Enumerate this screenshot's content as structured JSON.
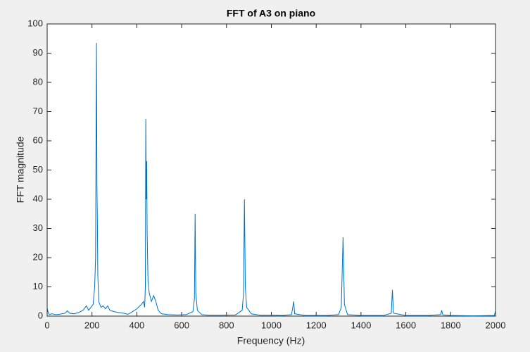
{
  "chart_data": {
    "type": "line",
    "title": "FFT of A3 on piano",
    "x_label": "Frequency (Hz)",
    "y_label": "FFT magnitude",
    "x": [
      0,
      5,
      10,
      20,
      40,
      60,
      80,
      90,
      100,
      120,
      140,
      160,
      175,
      185,
      195,
      205,
      212,
      216,
      218,
      220,
      222,
      224,
      226,
      230,
      240,
      250,
      260,
      270,
      280,
      300,
      320,
      340,
      360,
      380,
      400,
      420,
      430,
      435,
      438,
      440,
      442,
      444,
      446,
      448,
      450,
      455,
      465,
      475,
      485,
      495,
      510,
      540,
      580,
      620,
      650,
      657,
      660,
      663,
      670,
      690,
      720,
      780,
      840,
      870,
      876,
      880,
      884,
      890,
      910,
      950,
      1000,
      1050,
      1090,
      1100,
      1104,
      1150,
      1250,
      1300,
      1312,
      1320,
      1326,
      1340,
      1400,
      1500,
      1535,
      1540,
      1545,
      1600,
      1700,
      1755,
      1760,
      1765,
      1800,
      1900,
      1995,
      2000
    ],
    "values": [
      3,
      1,
      0.5,
      0.8,
      0.5,
      0.7,
      1,
      1.8,
      1,
      0.8,
      1.2,
      2,
      3.5,
      2,
      3,
      4,
      10,
      20,
      60,
      93.5,
      45,
      33,
      14,
      5,
      3,
      3.5,
      2.5,
      3.5,
      2,
      1.5,
      1.2,
      1,
      0.6,
      1.5,
      2.5,
      4,
      5,
      3,
      10,
      67.5,
      40,
      53,
      29,
      20,
      12,
      8,
      5,
      7,
      5,
      2,
      0.8,
      0.5,
      0.4,
      0.5,
      1.5,
      6,
      35,
      8,
      2,
      0.5,
      0.3,
      0.3,
      0.4,
      2,
      8,
      40,
      10,
      3,
      0.8,
      0.3,
      0.3,
      0.2,
      0.5,
      5,
      0.8,
      0.2,
      0.2,
      0.5,
      3,
      27,
      4,
      0.5,
      0.2,
      0.2,
      1,
      9,
      1,
      0.2,
      0.2,
      0.5,
      2,
      0.4,
      0.2,
      0.1,
      0.2,
      2
    ],
    "color": "#0072bd",
    "xlim": [
      0,
      2000
    ],
    "xticks": [
      0,
      200,
      400,
      600,
      800,
      1000,
      1200,
      1400,
      1600,
      1800,
      2000
    ],
    "ylim": [
      0,
      100
    ],
    "yticks": [
      0,
      10,
      20,
      30,
      40,
      50,
      60,
      70,
      80,
      90,
      100
    ],
    "grid": false
  }
}
